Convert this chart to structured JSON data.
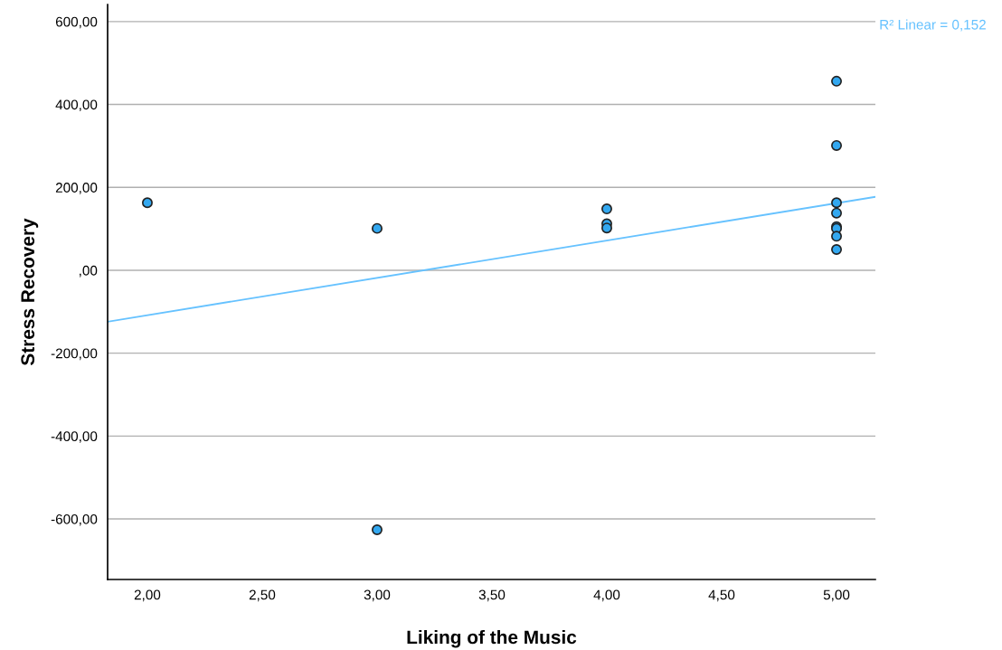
{
  "chart_data": {
    "type": "scatter",
    "xlabel": "Liking of the Music",
    "ylabel": "Stress Recovery",
    "annotations": [
      "R² Linear = 0,152"
    ],
    "series": [
      {
        "color": "#33a8f0",
        "x": [
          2,
          3,
          3,
          4,
          4,
          4,
          5,
          5,
          5,
          5,
          5,
          5,
          5,
          5
        ],
        "values": [
          163,
          101,
          -626,
          148,
          112,
          102,
          456,
          301,
          163,
          138,
          105,
          101,
          82,
          50
        ]
      },
      {
        "type": "line",
        "color": "#66c2ff",
        "marker": "none",
        "x": [
          1.827,
          5.169
        ],
        "values": [
          -124,
          177
        ]
      }
    ],
    "marker": "circle",
    "xlim": [
      1.827,
      5.169
    ],
    "ylim": [
      -746,
      641
    ],
    "xticks": [
      {
        "value": 2,
        "label": "2,00"
      },
      {
        "value": 2.5,
        "label": "2,50"
      },
      {
        "value": 3,
        "label": "3,00"
      },
      {
        "value": 3.5,
        "label": "3,50"
      },
      {
        "value": 4,
        "label": "4,00"
      },
      {
        "value": 4.5,
        "label": "4,50"
      },
      {
        "value": 5,
        "label": "5,00"
      }
    ],
    "yticks": [
      {
        "value": -600,
        "label": "-600,00"
      },
      {
        "value": -400,
        "label": "-400,00"
      },
      {
        "value": -200,
        "label": "-200,00"
      },
      {
        "value": 0,
        "label": ",00"
      },
      {
        "value": 200,
        "label": "200,00"
      },
      {
        "value": 400,
        "label": "400,00"
      },
      {
        "value": 600,
        "label": "600,00"
      }
    ],
    "grid": "y",
    "legend": false
  }
}
